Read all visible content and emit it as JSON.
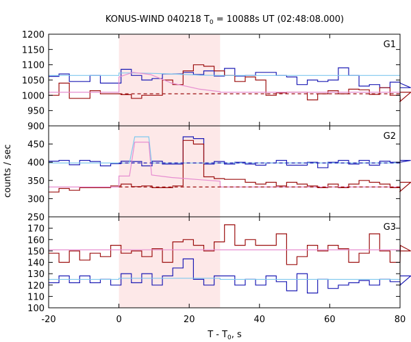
{
  "chart_data": {
    "type": "line",
    "title": "KONUS-WIND 040218 T",
    "title_sub": "0",
    "title_tail": " = 10088s UT (02:48:08.000)",
    "xlabel": "T - T",
    "xlabel_sub": "0",
    "xlabel_tail": ", s",
    "ylabel": "counts / sec",
    "xlim": [
      -20,
      80
    ],
    "x_ticks": [
      "-20",
      "0",
      "20",
      "40",
      "60",
      "80"
    ],
    "shaded_interval": [
      0,
      28.8
    ],
    "colors": {
      "shade": "#fde8e8",
      "blue": "#1a1ab4",
      "red": "#9b0d0d",
      "lightblue": "#7ec8ee",
      "pink": "#e68cd0",
      "frame": "#000000"
    },
    "bin_width": 2.944,
    "x_start": -20,
    "panels": [
      {
        "label": "G1",
        "ylim": [
          900,
          1200
        ],
        "y_ticks": [
          "900",
          "950",
          "1000",
          "1050",
          "1100",
          "1150",
          "1200"
        ],
        "series": [
          {
            "color": "blue",
            "style": "step",
            "values": [
              1062,
              1070,
              1045,
              1045,
              1065,
              1040,
              1040,
              1085,
              1065,
              1050,
              1055,
              1070,
              1070,
              1075,
              1068,
              1080,
              1063,
              1088,
              1063,
              1065,
              1075,
              1075,
              1065,
              1060,
              1035,
              1050,
              1045,
              1050,
              1090,
              1065,
              1030,
              1035,
              1025,
              1043,
              1040,
              1025
            ]
          },
          {
            "color": "red",
            "style": "step",
            "values": [
              1000,
              1040,
              990,
              990,
              1015,
              1005,
              1005,
              1002,
              990,
              1000,
              1000,
              1050,
              1035,
              1080,
              1100,
              1095,
              1080,
              1065,
              1045,
              1060,
              1050,
              1000,
              1008,
              1010,
              1010,
              985,
              1005,
              1015,
              1005,
              1020,
              1018,
              1003,
              1025,
              1000,
              980,
              1010
            ]
          },
          {
            "color": "lightblue",
            "style": "model",
            "baseline": 1065,
            "pulse": [
              [
                0,
                1073
              ],
              [
                4,
                1073
              ],
              [
                9,
                1072
              ],
              [
                15,
                1070
              ],
              [
                19,
                1068
              ],
              [
                23,
                1066
              ],
              [
                28.8,
                1065
              ]
            ]
          },
          {
            "color": "pink",
            "style": "model",
            "baseline": 1010,
            "pulse": [
              [
                0,
                1060
              ],
              [
                4,
                1075
              ],
              [
                9,
                1068
              ],
              [
                15,
                1040
              ],
              [
                19,
                1030
              ],
              [
                23,
                1020
              ],
              [
                28.8,
                1012
              ]
            ]
          },
          {
            "color": "red",
            "style": "dashed",
            "values": [
              1005
            ]
          }
        ]
      },
      {
        "label": "G2",
        "ylim": [
          250,
          500
        ],
        "y_ticks": [
          "250",
          "300",
          "350",
          "400",
          "450"
        ],
        "series": [
          {
            "color": "blue",
            "style": "step",
            "values": [
              403,
              405,
              393,
              405,
              402,
              390,
              396,
              403,
              402,
              390,
              403,
              395,
              395,
              470,
              465,
              395,
              402,
              395,
              400,
              395,
              392,
              398,
              405,
              392,
              392,
              400,
              385,
              400,
              405,
              395,
              405,
              392,
              403,
              400,
              400,
              405
            ]
          },
          {
            "color": "red",
            "style": "step",
            "values": [
              318,
              328,
              323,
              330,
              330,
              330,
              335,
              340,
              333,
              335,
              330,
              330,
              335,
              460,
              450,
              360,
              355,
              353,
              353,
              345,
              340,
              345,
              335,
              345,
              340,
              335,
              330,
              340,
              330,
              340,
              350,
              345,
              340,
              330,
              320,
              345
            ]
          },
          {
            "color": "lightblue",
            "style": "model",
            "baseline": 398,
            "pulse": [
              [
                0,
                398
              ],
              [
                3,
                398
              ],
              [
                4.5,
                470
              ],
              [
                8.5,
                470
              ],
              [
                9.3,
                398
              ],
              [
                28.8,
                398
              ]
            ]
          },
          {
            "color": "pink",
            "style": "model",
            "baseline": 332,
            "pulse": [
              [
                0,
                362
              ],
              [
                3,
                362
              ],
              [
                4.5,
                455
              ],
              [
                8.5,
                455
              ],
              [
                9.3,
                365
              ],
              [
                15,
                358
              ],
              [
                19,
                355
              ],
              [
                23,
                352
              ],
              [
                28.8,
                348
              ]
            ]
          },
          {
            "color": "blue",
            "style": "dashed",
            "values": [
              398
            ]
          },
          {
            "color": "red",
            "style": "dashed",
            "values": [
              332
            ]
          }
        ]
      },
      {
        "label": "G3",
        "ylim": [
          100,
          180
        ],
        "y_ticks": [
          "100",
          "110",
          "120",
          "130",
          "140",
          "150",
          "160",
          "170"
        ],
        "series": [
          {
            "color": "blue",
            "style": "step",
            "values": [
              122,
              128,
              122,
              128,
              122,
              125,
              120,
              130,
              122,
              130,
              120,
              128,
              135,
              143,
              125,
              120,
              128,
              128,
              120,
              125,
              120,
              128,
              123,
              115,
              130,
              113,
              125,
              117,
              120,
              122,
              124,
              120,
              125,
              123,
              120,
              128
            ]
          },
          {
            "color": "red",
            "style": "step",
            "values": [
              148,
              140,
              150,
              142,
              148,
              145,
              155,
              148,
              150,
              145,
              152,
              140,
              158,
              160,
              155,
              150,
              158,
              173,
              155,
              160,
              155,
              155,
              165,
              138,
              145,
              155,
              150,
              155,
              152,
              140,
              148,
              165,
              150,
              140,
              155,
              150
            ]
          },
          {
            "color": "lightblue",
            "style": "model",
            "baseline": 125,
            "pulse": [
              [
                0,
                126
              ],
              [
                28.8,
                126
              ]
            ]
          },
          {
            "color": "pink",
            "style": "model",
            "baseline": 151,
            "pulse": [
              [
                0,
                151
              ],
              [
                28.8,
                151
              ]
            ]
          }
        ]
      }
    ]
  }
}
